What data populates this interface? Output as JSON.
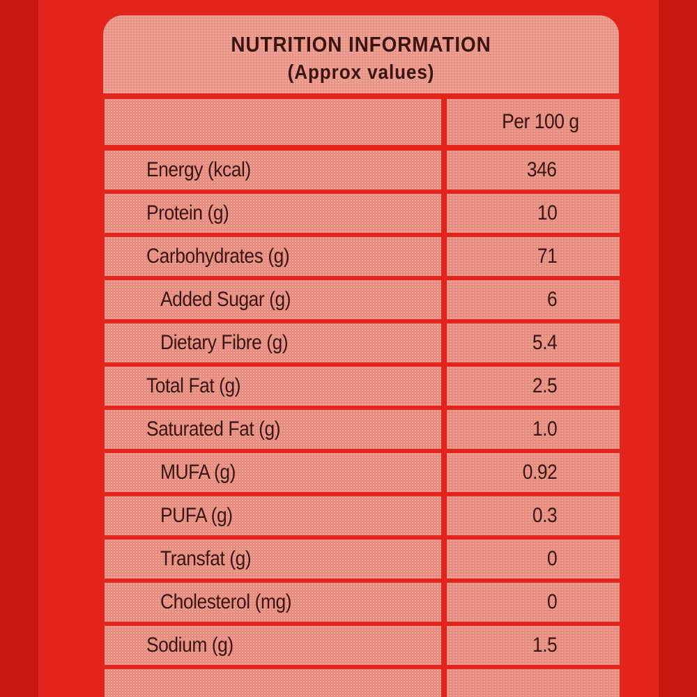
{
  "label": {
    "title": "NUTRITION INFORMATION",
    "subtitle": "(Approx values)",
    "column_header": "Per 100 g",
    "rows": [
      {
        "name": "Energy (kcal)",
        "value": "346",
        "indent": false
      },
      {
        "name": "Protein (g)",
        "value": "10",
        "indent": false
      },
      {
        "name": "Carbohydrates (g)",
        "value": "71",
        "indent": false
      },
      {
        "name": "Added Sugar (g)",
        "value": "6",
        "indent": true
      },
      {
        "name": "Dietary Fibre (g)",
        "value": "5.4",
        "indent": true
      },
      {
        "name": "Total Fat (g)",
        "value": "2.5",
        "indent": false
      },
      {
        "name": "Saturated Fat (g)",
        "value": "1.0",
        "indent": false
      },
      {
        "name": "MUFA (g)",
        "value": "0.92",
        "indent": true
      },
      {
        "name": "PUFA (g)",
        "value": "0.3",
        "indent": true
      },
      {
        "name": "Transfat (g)",
        "value": "0",
        "indent": true
      },
      {
        "name": "Cholesterol (mg)",
        "value": "0",
        "indent": true
      },
      {
        "name": "Sodium (g)",
        "value": "1.5",
        "indent": false
      }
    ]
  },
  "colors": {
    "background": "#e3241c",
    "cell": "#e58c7e",
    "text": "#3b1310"
  }
}
